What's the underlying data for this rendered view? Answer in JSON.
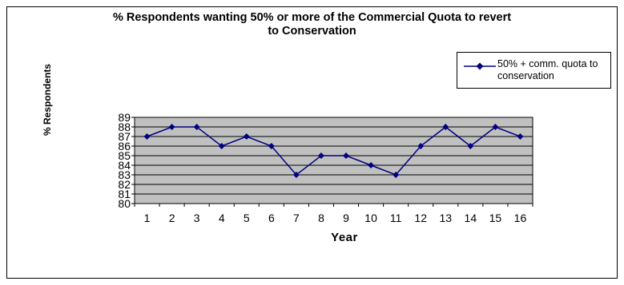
{
  "chart_data": {
    "type": "line",
    "title_lines": [
      "% Respondents wanting 50% or more of the Commercial Quota to revert",
      "to Conservation"
    ],
    "xlabel": "Year",
    "ylabel": "% Respondents",
    "categories": [
      "1",
      "2",
      "3",
      "4",
      "5",
      "6",
      "7",
      "8",
      "9",
      "10",
      "11",
      "12",
      "13",
      "14",
      "15",
      "16"
    ],
    "series": [
      {
        "name": "50% + comm. quota to conservation",
        "values": [
          87,
          88,
          88,
          86,
          87,
          86,
          83,
          85,
          85,
          84,
          83,
          86,
          88,
          86,
          88,
          87
        ]
      }
    ],
    "ylim": [
      80,
      89
    ],
    "yticks": [
      80,
      81,
      82,
      83,
      84,
      85,
      86,
      87,
      88,
      89
    ],
    "grid": true,
    "legend_position": "top-right",
    "plot_background": "#c0c0c0",
    "line_color": "#000080"
  },
  "legend": {
    "label_line1": "50% + comm. quota to",
    "label_line2": "conservation"
  }
}
